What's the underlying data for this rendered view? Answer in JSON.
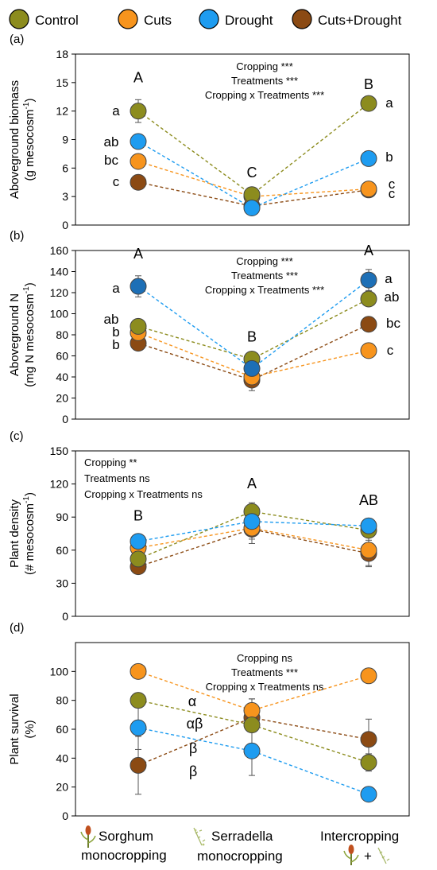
{
  "legend": [
    {
      "name": "Control",
      "color": "#8c8c1e"
    },
    {
      "name": "Cuts",
      "color": "#f7941d"
    },
    {
      "name": "Drought",
      "color": "#1e9cf0"
    },
    {
      "name": "Cuts+Drought",
      "color": "#8b4a13"
    }
  ],
  "colors": {
    "Control": "#8c8c1e",
    "Cuts": "#f7941d",
    "Drought": "#1e9cf0",
    "Cuts+Drought": "#8b4a13",
    "Drought_dark": "#1d6fb6"
  },
  "x_categories": [
    {
      "line1": "Sorghum",
      "line2": "monocropping",
      "icon": "sorghum-icon"
    },
    {
      "line1": "Serradella",
      "line2": "monocropping",
      "icon": "serradella-icon"
    },
    {
      "line1": "Intercropping",
      "line2": "+",
      "icon": "intercropping-icons"
    }
  ],
  "chart_data": [
    {
      "type": "line",
      "panel": "(a)",
      "ylabel_line1": "Aboveground biomass",
      "ylabel_line2": "(g mesocosm",
      "ylabel_sup": "-1",
      "ylabel_close": ")",
      "ylim": [
        0,
        18
      ],
      "yticks": [
        0,
        3,
        6,
        9,
        12,
        15,
        18
      ],
      "stats": [
        "Cropping ***",
        "Treatments ***",
        "Cropping x Treatments ***"
      ],
      "categories": [
        "Sorghum monocropping",
        "Serradella monocropping",
        "Intercropping"
      ],
      "series": [
        {
          "name": "Control",
          "values": [
            12.0,
            3.2,
            12.8
          ],
          "errors": [
            1.2,
            0.3,
            0.0
          ]
        },
        {
          "name": "Cuts",
          "values": [
            6.7,
            3.0,
            3.8
          ],
          "errors": [
            0.4,
            0.3,
            0.3
          ]
        },
        {
          "name": "Drought",
          "values": [
            8.8,
            1.8,
            7.0
          ],
          "errors": [
            0.5,
            0.2,
            0.3
          ]
        },
        {
          "name": "Cuts+Drought",
          "values": [
            4.5,
            2.0,
            3.7
          ],
          "errors": [
            0.3,
            0.2,
            0.3
          ]
        }
      ],
      "group_letters": [
        "A",
        "C",
        "B"
      ],
      "left_letters": [
        "a",
        "ab",
        "bc",
        "c"
      ],
      "right_letters": [
        "a",
        "b",
        "c",
        "c"
      ]
    },
    {
      "type": "line",
      "panel": "(b)",
      "ylabel_line1": "Aboveground N",
      "ylabel_line2": "(mg N mesocosm",
      "ylabel_sup": "-1",
      "ylabel_close": ")",
      "ylim": [
        0,
        160
      ],
      "yticks": [
        0,
        20,
        40,
        60,
        80,
        100,
        120,
        140,
        160
      ],
      "stats": [
        "Cropping ***",
        "Treatments ***",
        "Cropping x Treatments ***"
      ],
      "categories": [
        "Sorghum monocropping",
        "Serradella monocropping",
        "Intercropping"
      ],
      "series": [
        {
          "name": "Control",
          "values": [
            88,
            57,
            114
          ],
          "errors": [
            3,
            3,
            4
          ]
        },
        {
          "name": "Cuts",
          "values": [
            82,
            40,
            65
          ],
          "errors": [
            3,
            3,
            3
          ]
        },
        {
          "name": "Drought",
          "values": [
            126,
            48,
            132
          ],
          "errors": [
            10,
            4,
            10
          ]
        },
        {
          "name": "Cuts+Drought",
          "values": [
            72,
            37,
            90
          ],
          "errors": [
            3,
            10,
            3
          ]
        }
      ],
      "group_letters": [
        "A",
        "B",
        "A"
      ],
      "left_letters": [
        "a",
        "ab",
        "b",
        "b"
      ],
      "right_letters": [
        "a",
        "ab",
        "bc",
        "c"
      ]
    },
    {
      "type": "line",
      "panel": "(c)",
      "ylabel_line1": "Plant density",
      "ylabel_line2": "(# mesocosm",
      "ylabel_sup": "-1",
      "ylabel_close": ")",
      "ylim": [
        0,
        150
      ],
      "yticks": [
        0,
        30,
        60,
        90,
        120,
        150
      ],
      "stats": [
        "Cropping **",
        "Treatments ns",
        "Cropping x Treatments ns"
      ],
      "categories": [
        "Sorghum monocropping",
        "Serradella monocropping",
        "Intercropping"
      ],
      "series": [
        {
          "name": "Control",
          "values": [
            52,
            95,
            78
          ],
          "errors": [
            3,
            8,
            5
          ]
        },
        {
          "name": "Cuts",
          "values": [
            62,
            80,
            60
          ],
          "errors": [
            3,
            10,
            14
          ]
        },
        {
          "name": "Drought",
          "values": [
            68,
            86,
            82
          ],
          "errors": [
            3,
            4,
            6
          ]
        },
        {
          "name": "Cuts+Drought",
          "values": [
            45,
            79,
            57
          ],
          "errors": [
            3,
            13,
            12
          ]
        }
      ],
      "group_letters": [
        "B",
        "A",
        "AB"
      ],
      "left_letters": [],
      "right_letters": []
    },
    {
      "type": "line",
      "panel": "(d)",
      "ylabel_line1": "Plant survival",
      "ylabel_line2": "(%)",
      "ylabel_sup": "",
      "ylabel_close": "",
      "ylim": [
        0,
        120
      ],
      "yticks": [
        0,
        20,
        40,
        60,
        80,
        100
      ],
      "stats": [
        "Cropping ns",
        "Treatments ***",
        "Cropping x Treatments ns"
      ],
      "categories": [
        "Sorghum monocropping",
        "Serradella monocropping",
        "Intercropping"
      ],
      "series": [
        {
          "name": "Control",
          "values": [
            80,
            63,
            37
          ],
          "errors": [
            5,
            18,
            6
          ]
        },
        {
          "name": "Cuts",
          "values": [
            100,
            73,
            97
          ],
          "errors": [
            3,
            8,
            3
          ]
        },
        {
          "name": "Drought",
          "values": [
            61,
            45,
            15
          ],
          "errors": [
            15,
            17,
            4
          ]
        },
        {
          "name": "Cuts+Drought",
          "values": [
            35,
            68,
            53
          ],
          "errors": [
            20,
            8,
            14
          ]
        }
      ],
      "group_letters": [],
      "left_letters": [],
      "right_letters": [],
      "mid_letters": [
        "α",
        "αβ",
        "β",
        "β"
      ]
    }
  ]
}
